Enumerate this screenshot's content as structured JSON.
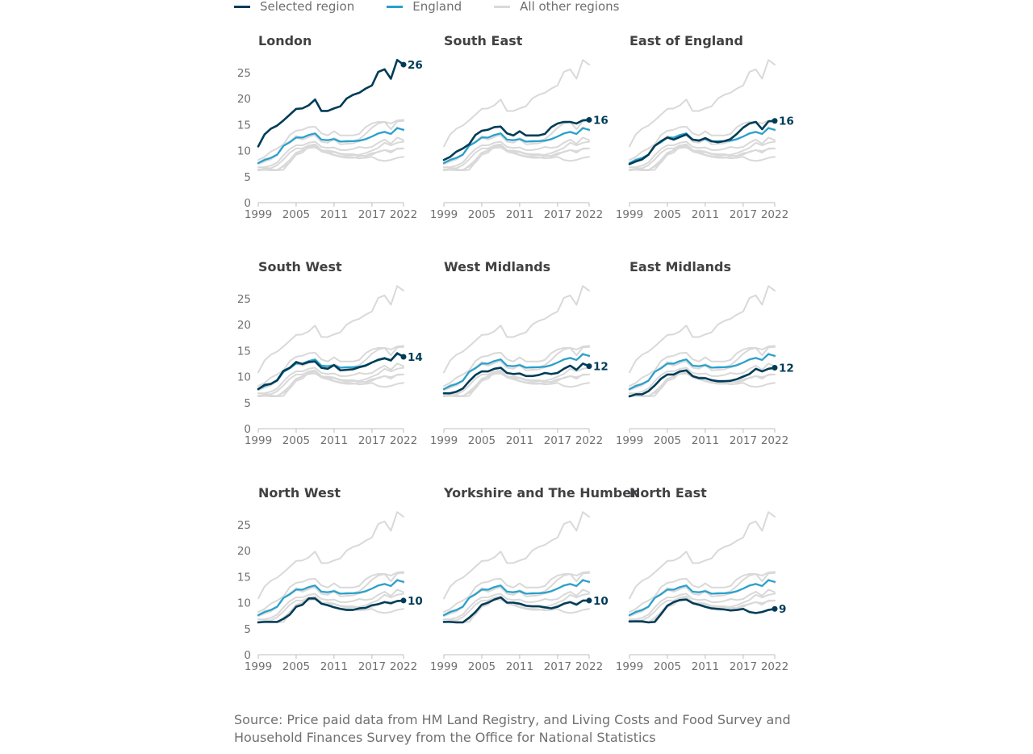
{
  "legend": {
    "items": [
      {
        "label": "Selected region",
        "color": "#003c57"
      },
      {
        "label": "England",
        "color": "#27a0cc"
      },
      {
        "label": "All other regions",
        "color": "#d9d9d9"
      }
    ]
  },
  "source": "Source: Price paid data from HM Land Registry, and Living Costs and Food Survey and Household Finances Survey from the Office for National Statistics",
  "chart_data": {
    "type": "line",
    "layout": "small-multiples",
    "x": [
      1999,
      2000,
      2001,
      2002,
      2003,
      2004,
      2005,
      2006,
      2007,
      2008,
      2009,
      2010,
      2011,
      2012,
      2013,
      2014,
      2015,
      2016,
      2017,
      2018,
      2019,
      2020,
      2021,
      2022
    ],
    "x_ticks": [
      1999,
      2005,
      2011,
      2017,
      2022
    ],
    "y_ticks": [
      0,
      5,
      10,
      15,
      20,
      25
    ],
    "ylim": [
      0,
      27.5
    ],
    "colors": {
      "selected": "#003c57",
      "england": "#27a0cc",
      "other": "#d9d9d9",
      "axis": "#bdbdbd"
    },
    "england": [
      7.6,
      8.2,
      8.6,
      9.2,
      10.9,
      11.6,
      12.5,
      12.5,
      13.0,
      13.3,
      12.1,
      12.0,
      12.2,
      11.7,
      11.8,
      11.8,
      11.9,
      12.2,
      12.7,
      13.3,
      13.6,
      13.2,
      14.3,
      14.0
    ],
    "panels": [
      {
        "name": "London",
        "end_label": "26",
        "values": [
          10.8,
          13.1,
          14.2,
          14.8,
          15.8,
          16.9,
          18.0,
          18.1,
          18.7,
          19.8,
          17.6,
          17.6,
          18.1,
          18.5,
          20.0,
          20.7,
          21.1,
          21.9,
          22.5,
          25.1,
          25.6,
          23.8,
          27.4,
          26.5
        ]
      },
      {
        "name": "South East",
        "end_label": "16",
        "values": [
          8.2,
          8.8,
          9.8,
          10.4,
          11.2,
          13.0,
          13.8,
          14.0,
          14.5,
          14.6,
          13.3,
          12.9,
          13.7,
          12.9,
          12.9,
          12.9,
          13.2,
          14.5,
          15.2,
          15.5,
          15.5,
          15.2,
          15.8,
          15.9
        ]
      },
      {
        "name": "East of England",
        "end_label": "16",
        "values": [
          7.4,
          7.9,
          8.3,
          9.2,
          10.9,
          11.8,
          12.5,
          12.1,
          12.6,
          13.1,
          12.1,
          11.9,
          12.4,
          11.8,
          11.6,
          11.8,
          12.2,
          13.2,
          14.4,
          15.2,
          15.5,
          14.1,
          15.6,
          15.7
        ]
      },
      {
        "name": "South West",
        "end_label": "14",
        "values": [
          7.6,
          8.4,
          8.6,
          9.3,
          11.1,
          11.7,
          12.8,
          12.4,
          12.8,
          12.9,
          11.7,
          11.5,
          12.2,
          11.2,
          11.3,
          11.4,
          11.8,
          12.1,
          12.7,
          13.2,
          13.5,
          13.1,
          14.5,
          13.8
        ]
      },
      {
        "name": "West Midlands",
        "end_label": "12",
        "values": [
          6.8,
          6.8,
          7.1,
          7.7,
          9.1,
          10.3,
          11.0,
          11.0,
          11.5,
          11.7,
          10.7,
          10.5,
          10.6,
          10.1,
          10.1,
          10.3,
          10.7,
          10.5,
          10.7,
          11.5,
          12.1,
          11.3,
          12.5,
          12.0
        ]
      },
      {
        "name": "East Midlands",
        "end_label": "12",
        "values": [
          6.2,
          6.6,
          6.6,
          7.2,
          8.3,
          9.6,
          10.4,
          10.4,
          11.0,
          11.2,
          10.1,
          9.7,
          9.7,
          9.3,
          9.1,
          9.1,
          9.2,
          9.5,
          10.0,
          10.5,
          11.5,
          11.0,
          11.5,
          11.7
        ]
      },
      {
        "name": "North West",
        "end_label": "10",
        "values": [
          6.2,
          6.3,
          6.3,
          6.3,
          6.9,
          7.7,
          9.2,
          9.6,
          10.8,
          10.8,
          9.8,
          9.5,
          9.1,
          8.8,
          8.6,
          8.6,
          8.9,
          9.0,
          9.5,
          9.7,
          10.1,
          9.9,
          10.3,
          10.4
        ]
      },
      {
        "name": "Yorkshire and The Humber",
        "end_label": "10",
        "values": [
          6.3,
          6.3,
          6.2,
          6.2,
          7.1,
          8.2,
          9.6,
          10.0,
          10.6,
          11.0,
          10.0,
          10.0,
          9.8,
          9.4,
          9.3,
          9.3,
          9.1,
          8.9,
          9.2,
          9.8,
          10.1,
          9.6,
          10.4,
          10.4
        ]
      },
      {
        "name": "North East",
        "end_label": "9",
        "values": [
          6.4,
          6.4,
          6.4,
          6.2,
          6.3,
          7.8,
          9.4,
          10.1,
          10.5,
          10.6,
          9.9,
          9.6,
          9.2,
          8.9,
          8.8,
          8.7,
          8.5,
          8.6,
          8.8,
          8.2,
          8.0,
          8.2,
          8.6,
          8.8
        ]
      }
    ]
  }
}
